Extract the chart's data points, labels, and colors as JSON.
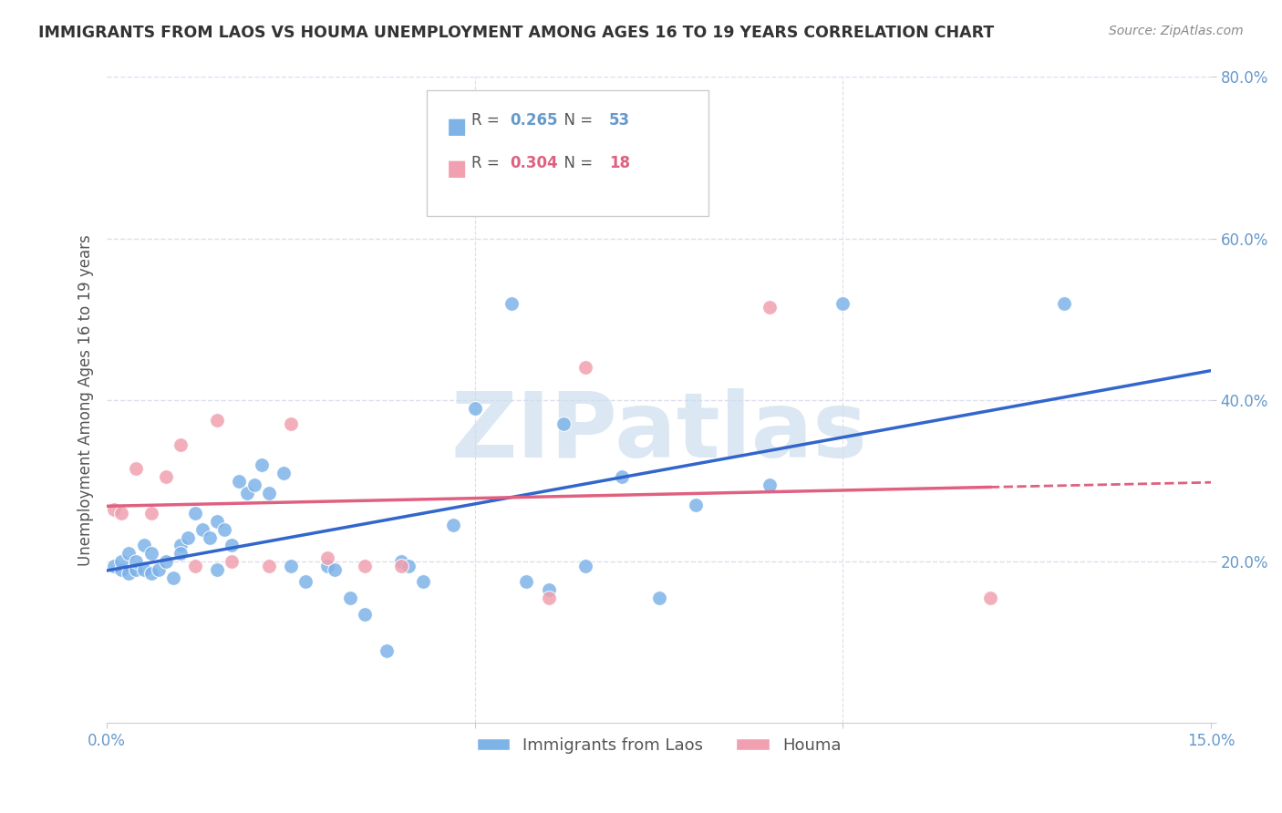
{
  "title": "IMMIGRANTS FROM LAOS VS HOUMA UNEMPLOYMENT AMONG AGES 16 TO 19 YEARS CORRELATION CHART",
  "source": "Source: ZipAtlas.com",
  "ylabel": "Unemployment Among Ages 16 to 19 years",
  "xlim": [
    0.0,
    0.15
  ],
  "ylim": [
    0.0,
    0.8
  ],
  "legend1_r": "0.265",
  "legend1_n": "53",
  "legend2_r": "0.304",
  "legend2_n": "18",
  "series1_label": "Immigrants from Laos",
  "series2_label": "Houma",
  "blue_color": "#7EB3E8",
  "pink_color": "#F0A0B0",
  "line_blue": "#3366CC",
  "line_pink": "#E06080",
  "background": "#FFFFFF",
  "grid_color": "#DDDDEE",
  "title_color": "#333333",
  "axis_color": "#6699CC",
  "watermark": "ZIPatlas",
  "watermark_color": "#CCDDED",
  "blue_x": [
    0.001,
    0.002,
    0.002,
    0.003,
    0.003,
    0.004,
    0.004,
    0.005,
    0.005,
    0.006,
    0.006,
    0.007,
    0.008,
    0.009,
    0.01,
    0.01,
    0.011,
    0.012,
    0.013,
    0.014,
    0.015,
    0.015,
    0.016,
    0.017,
    0.018,
    0.019,
    0.02,
    0.021,
    0.022,
    0.024,
    0.025,
    0.027,
    0.03,
    0.031,
    0.033,
    0.035,
    0.038,
    0.04,
    0.041,
    0.043,
    0.047,
    0.05,
    0.055,
    0.057,
    0.06,
    0.062,
    0.065,
    0.07,
    0.075,
    0.08,
    0.09,
    0.1,
    0.13
  ],
  "blue_y": [
    0.195,
    0.19,
    0.2,
    0.185,
    0.21,
    0.19,
    0.2,
    0.22,
    0.19,
    0.185,
    0.21,
    0.19,
    0.2,
    0.18,
    0.22,
    0.21,
    0.23,
    0.26,
    0.24,
    0.23,
    0.25,
    0.19,
    0.24,
    0.22,
    0.3,
    0.285,
    0.295,
    0.32,
    0.285,
    0.31,
    0.195,
    0.175,
    0.195,
    0.19,
    0.155,
    0.135,
    0.09,
    0.2,
    0.195,
    0.175,
    0.245,
    0.39,
    0.52,
    0.175,
    0.165,
    0.37,
    0.195,
    0.305,
    0.155,
    0.27,
    0.295,
    0.52,
    0.52
  ],
  "pink_x": [
    0.001,
    0.002,
    0.004,
    0.006,
    0.008,
    0.01,
    0.012,
    0.015,
    0.017,
    0.022,
    0.025,
    0.03,
    0.035,
    0.04,
    0.06,
    0.065,
    0.09,
    0.12
  ],
  "pink_y": [
    0.265,
    0.26,
    0.315,
    0.26,
    0.305,
    0.345,
    0.195,
    0.375,
    0.2,
    0.195,
    0.37,
    0.205,
    0.195,
    0.195,
    0.155,
    0.44,
    0.515,
    0.155
  ]
}
